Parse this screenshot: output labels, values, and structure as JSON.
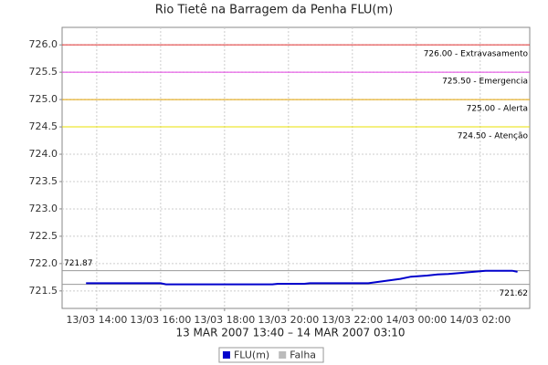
{
  "chart_data": {
    "type": "line",
    "title": "Rio Tietê na Barragem da Penha FLU(m)",
    "x_label": "13 MAR 2007 13:40 – 14 MAR 2007 03:10",
    "x": [
      "2007-03-13 13:40",
      "2007-03-13 16:00",
      "2007-03-13 16:10",
      "2007-03-13 19:30",
      "2007-03-13 19:40",
      "2007-03-13 20:30",
      "2007-03-13 20:40",
      "2007-03-13 22:30",
      "2007-03-13 23:00",
      "2007-03-13 23:30",
      "2007-03-13 23:50",
      "2007-03-14 00:20",
      "2007-03-14 00:40",
      "2007-03-14 01:00",
      "2007-03-14 02:00",
      "2007-03-14 02:10",
      "2007-03-14 03:00",
      "2007-03-14 03:10"
    ],
    "series": [
      {
        "name": "FLU(m)",
        "color": "#0000cc",
        "values": [
          721.64,
          721.64,
          721.62,
          721.62,
          721.63,
          721.63,
          721.64,
          721.64,
          721.68,
          721.72,
          721.76,
          721.78,
          721.8,
          721.81,
          721.86,
          721.87,
          721.87,
          721.85
        ]
      },
      {
        "name": "Falha",
        "color": "#bbbbbb",
        "values": [
          null,
          null,
          null,
          null,
          null,
          null,
          null,
          null,
          null,
          null,
          null,
          null,
          null,
          null,
          null,
          null,
          null,
          null
        ]
      }
    ],
    "xlim": [
      "2007-03-13 12:55",
      "2007-03-14 03:33"
    ],
    "xticks": [
      {
        "value": "2007-03-13 14:00",
        "label": "13/03 14:00"
      },
      {
        "value": "2007-03-13 16:00",
        "label": "13/03 16:00"
      },
      {
        "value": "2007-03-13 18:00",
        "label": "13/03 18:00"
      },
      {
        "value": "2007-03-13 20:00",
        "label": "13/03 20:00"
      },
      {
        "value": "2007-03-13 22:00",
        "label": "13/03 22:00"
      },
      {
        "value": "2007-03-14 00:00",
        "label": "14/03 00:00"
      },
      {
        "value": "2007-03-14 02:00",
        "label": "14/03 02:00"
      }
    ],
    "ylim": [
      721.18,
      726.32
    ],
    "yticks": [
      721.5,
      {
        "value": 722,
        "label": "722.0"
      },
      722.5,
      {
        "value": 723,
        "label": "723.0"
      },
      723.5,
      {
        "value": 724,
        "label": "724.0"
      },
      724.5,
      {
        "value": 725,
        "label": "725.0"
      },
      725.5,
      {
        "value": 726,
        "label": "726.0"
      }
    ],
    "grid": true,
    "thresholds": [
      {
        "value": 726,
        "label": "726.00 - Extravasamento",
        "color": "#e03030"
      },
      {
        "value": 725.5,
        "label": "725.50 - Emergencia",
        "color": "#e040e0"
      },
      {
        "value": 725,
        "label": "725.00 - Alerta",
        "color": "#e0a000"
      },
      {
        "value": 724.5,
        "label": "724.50 - Atenção",
        "color": "#e8e000"
      }
    ],
    "reference_lines": [
      721.87,
      721.62
    ],
    "reference_color": "#999999"
  }
}
